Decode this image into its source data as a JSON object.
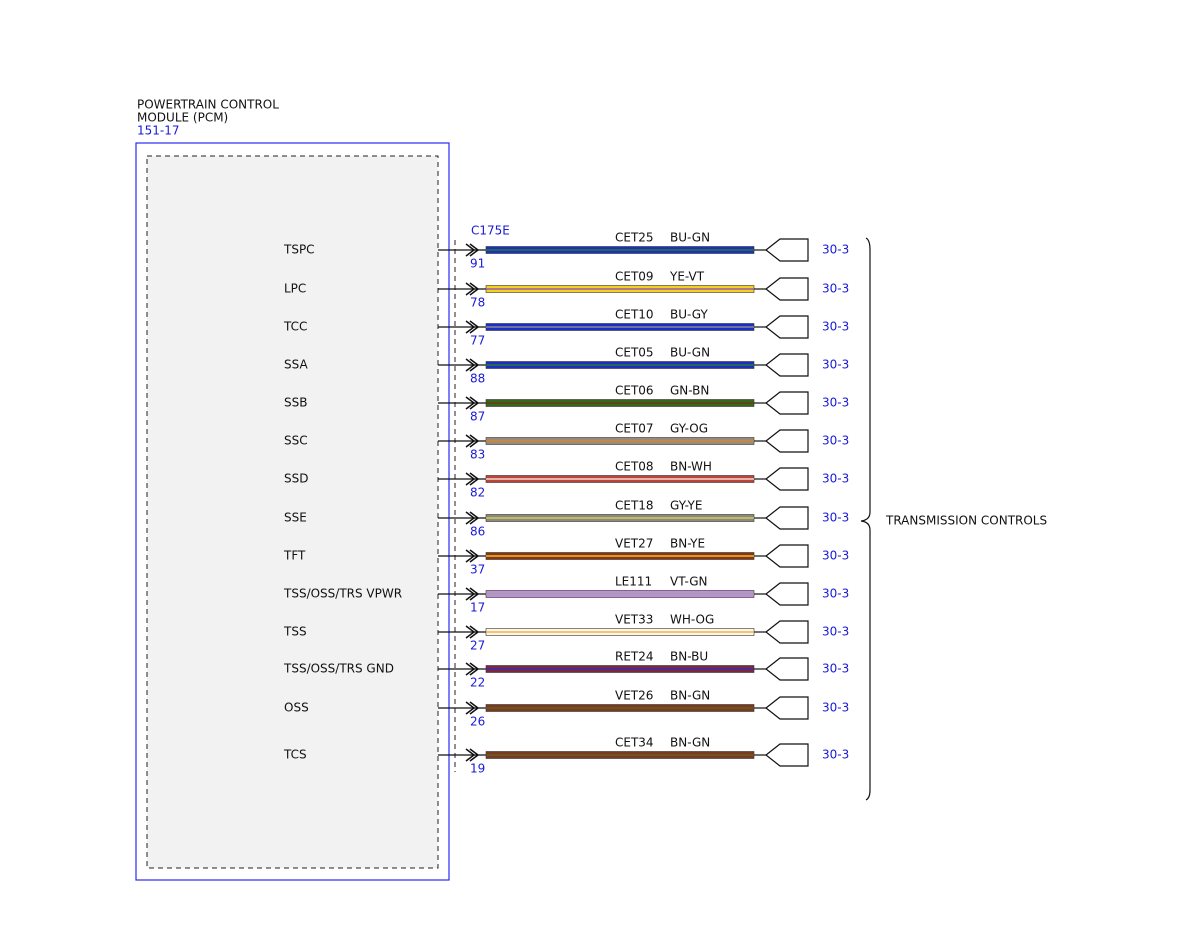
{
  "module": {
    "title_line1": "POWERTRAIN CONTROL",
    "title_line2": "MODULE (PCM)",
    "ref": "151-17",
    "connector": "C175E"
  },
  "destination": "TRANSMISSION CONTROLS",
  "wires": [
    {
      "signal": "TSPC",
      "pin": "91",
      "circuit": "CET25",
      "code": "BU-GN",
      "ref": "30-3",
      "color": "#1c2fc4",
      "stripe": "#2a7a2a"
    },
    {
      "signal": "LPC",
      "pin": "78",
      "circuit": "CET09",
      "code": "YE-VT",
      "ref": "30-3",
      "color": "#f2d21a",
      "stripe": "#9a5ab8"
    },
    {
      "signal": "TCC",
      "pin": "77",
      "circuit": "CET10",
      "code": "BU-GY",
      "ref": "30-3",
      "color": "#1c2fc4",
      "stripe": "#8a8a9a"
    },
    {
      "signal": "SSA",
      "pin": "88",
      "circuit": "CET05",
      "code": "BU-GN",
      "ref": "30-3",
      "color": "#1c2fc4",
      "stripe": "#2a7a2a"
    },
    {
      "signal": "SSB",
      "pin": "87",
      "circuit": "CET06",
      "code": "GN-BN",
      "ref": "30-3",
      "color": "#356a1c",
      "stripe": "#6a3a1a"
    },
    {
      "signal": "SSC",
      "pin": "83",
      "circuit": "CET07",
      "code": "GY-OG",
      "ref": "30-3",
      "color": "#9a8a7a",
      "stripe": "#d08a3a"
    },
    {
      "signal": "SSD",
      "pin": "82",
      "circuit": "CET08",
      "code": "BN-WH",
      "ref": "30-3",
      "color": "#b8443a",
      "stripe": "#f4d8d0"
    },
    {
      "signal": "SSE",
      "pin": "86",
      "circuit": "CET18",
      "code": "GY-YE",
      "ref": "30-3",
      "color": "#8a8a7a",
      "stripe": "#d8c860"
    },
    {
      "signal": "TFT",
      "pin": "37",
      "circuit": "VET27",
      "code": "BN-YE",
      "ref": "30-3",
      "color": "#8a3414",
      "stripe": "#f0c020"
    },
    {
      "signal": "TSS/OSS/TRS VPWR",
      "pin": "17",
      "circuit": "LE111",
      "code": "VT-GN",
      "ref": "30-3",
      "color": "#c88ad8",
      "stripe": "#8ab0a0"
    },
    {
      "signal": "TSS",
      "pin": "27",
      "circuit": "VET33",
      "code": "WH-OG",
      "ref": "30-3",
      "color": "#fff6e0",
      "stripe": "#f0b060"
    },
    {
      "signal": "TSS/OSS/TRS GND",
      "pin": "22",
      "circuit": "RET24",
      "code": "BN-BU",
      "ref": "30-3",
      "color": "#7a2a3a",
      "stripe": "#3a2ab8"
    },
    {
      "signal": "OSS",
      "pin": "26",
      "circuit": "VET26",
      "code": "BN-GN",
      "ref": "30-3",
      "color": "#7a3a1c",
      "stripe": "#6a5a2a"
    },
    {
      "signal": "TCS",
      "pin": "19",
      "circuit": "CET34",
      "code": "BN-GN",
      "ref": "30-3",
      "color": "#7a3a1c",
      "stripe": "#6a5a2a"
    }
  ]
}
